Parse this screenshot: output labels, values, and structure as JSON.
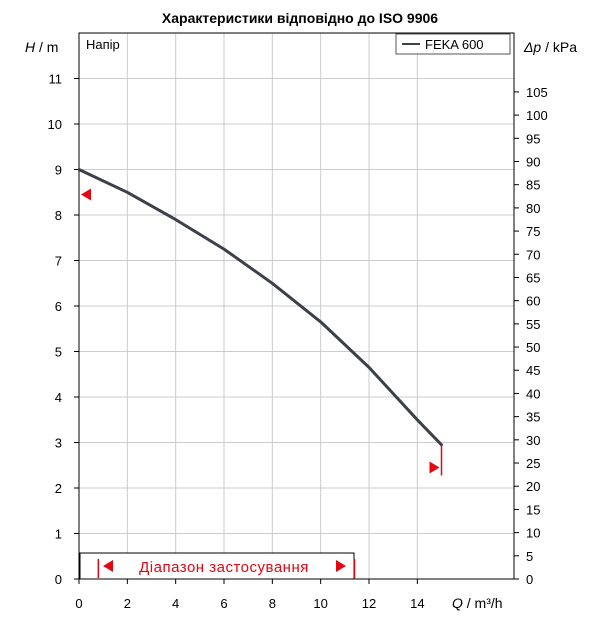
{
  "chart_data": {
    "type": "line",
    "title": "Характеристики відповідно до ISO 9906",
    "ylabel_left": {
      "symbol": "H",
      "unit": " / m"
    },
    "ylabel_right": {
      "symbol": "Δp",
      "unit": " / kPa"
    },
    "xlabel": {
      "symbol": "Q",
      "unit": " / m³/h"
    },
    "panel_label": "Напір",
    "xlim": [
      0,
      18
    ],
    "ylim_left": [
      0,
      12
    ],
    "ylim_right": [
      0,
      117.7
    ],
    "x_ticks": [
      0,
      2,
      4,
      6,
      8,
      10,
      12,
      14
    ],
    "y_left_ticks": [
      0,
      1,
      2,
      3,
      4,
      5,
      6,
      7,
      8,
      9,
      10,
      11
    ],
    "y_right_ticks": [
      0,
      5,
      10,
      15,
      20,
      25,
      30,
      35,
      40,
      45,
      50,
      55,
      60,
      65,
      70,
      75,
      80,
      85,
      90,
      95,
      100,
      105
    ],
    "grid": true,
    "legend_position": "top-right",
    "series": [
      {
        "name": "FEKA 600",
        "color": "#3c4049",
        "x": [
          0,
          2,
          4,
          6,
          8,
          10,
          12,
          14,
          15
        ],
        "y": [
          9.0,
          8.5,
          7.9,
          7.25,
          6.5,
          5.65,
          4.65,
          3.5,
          2.95
        ]
      }
    ],
    "operating_range_label": "Діапазон застосування",
    "operating_range": {
      "q_min": 0.8,
      "q_max": 11.4
    },
    "markers": {
      "left_h": 8.45,
      "right_h": 2.45
    }
  },
  "colors": {
    "accent": "#e30613",
    "grid": "#cccccc",
    "curve": "#3c4049"
  }
}
